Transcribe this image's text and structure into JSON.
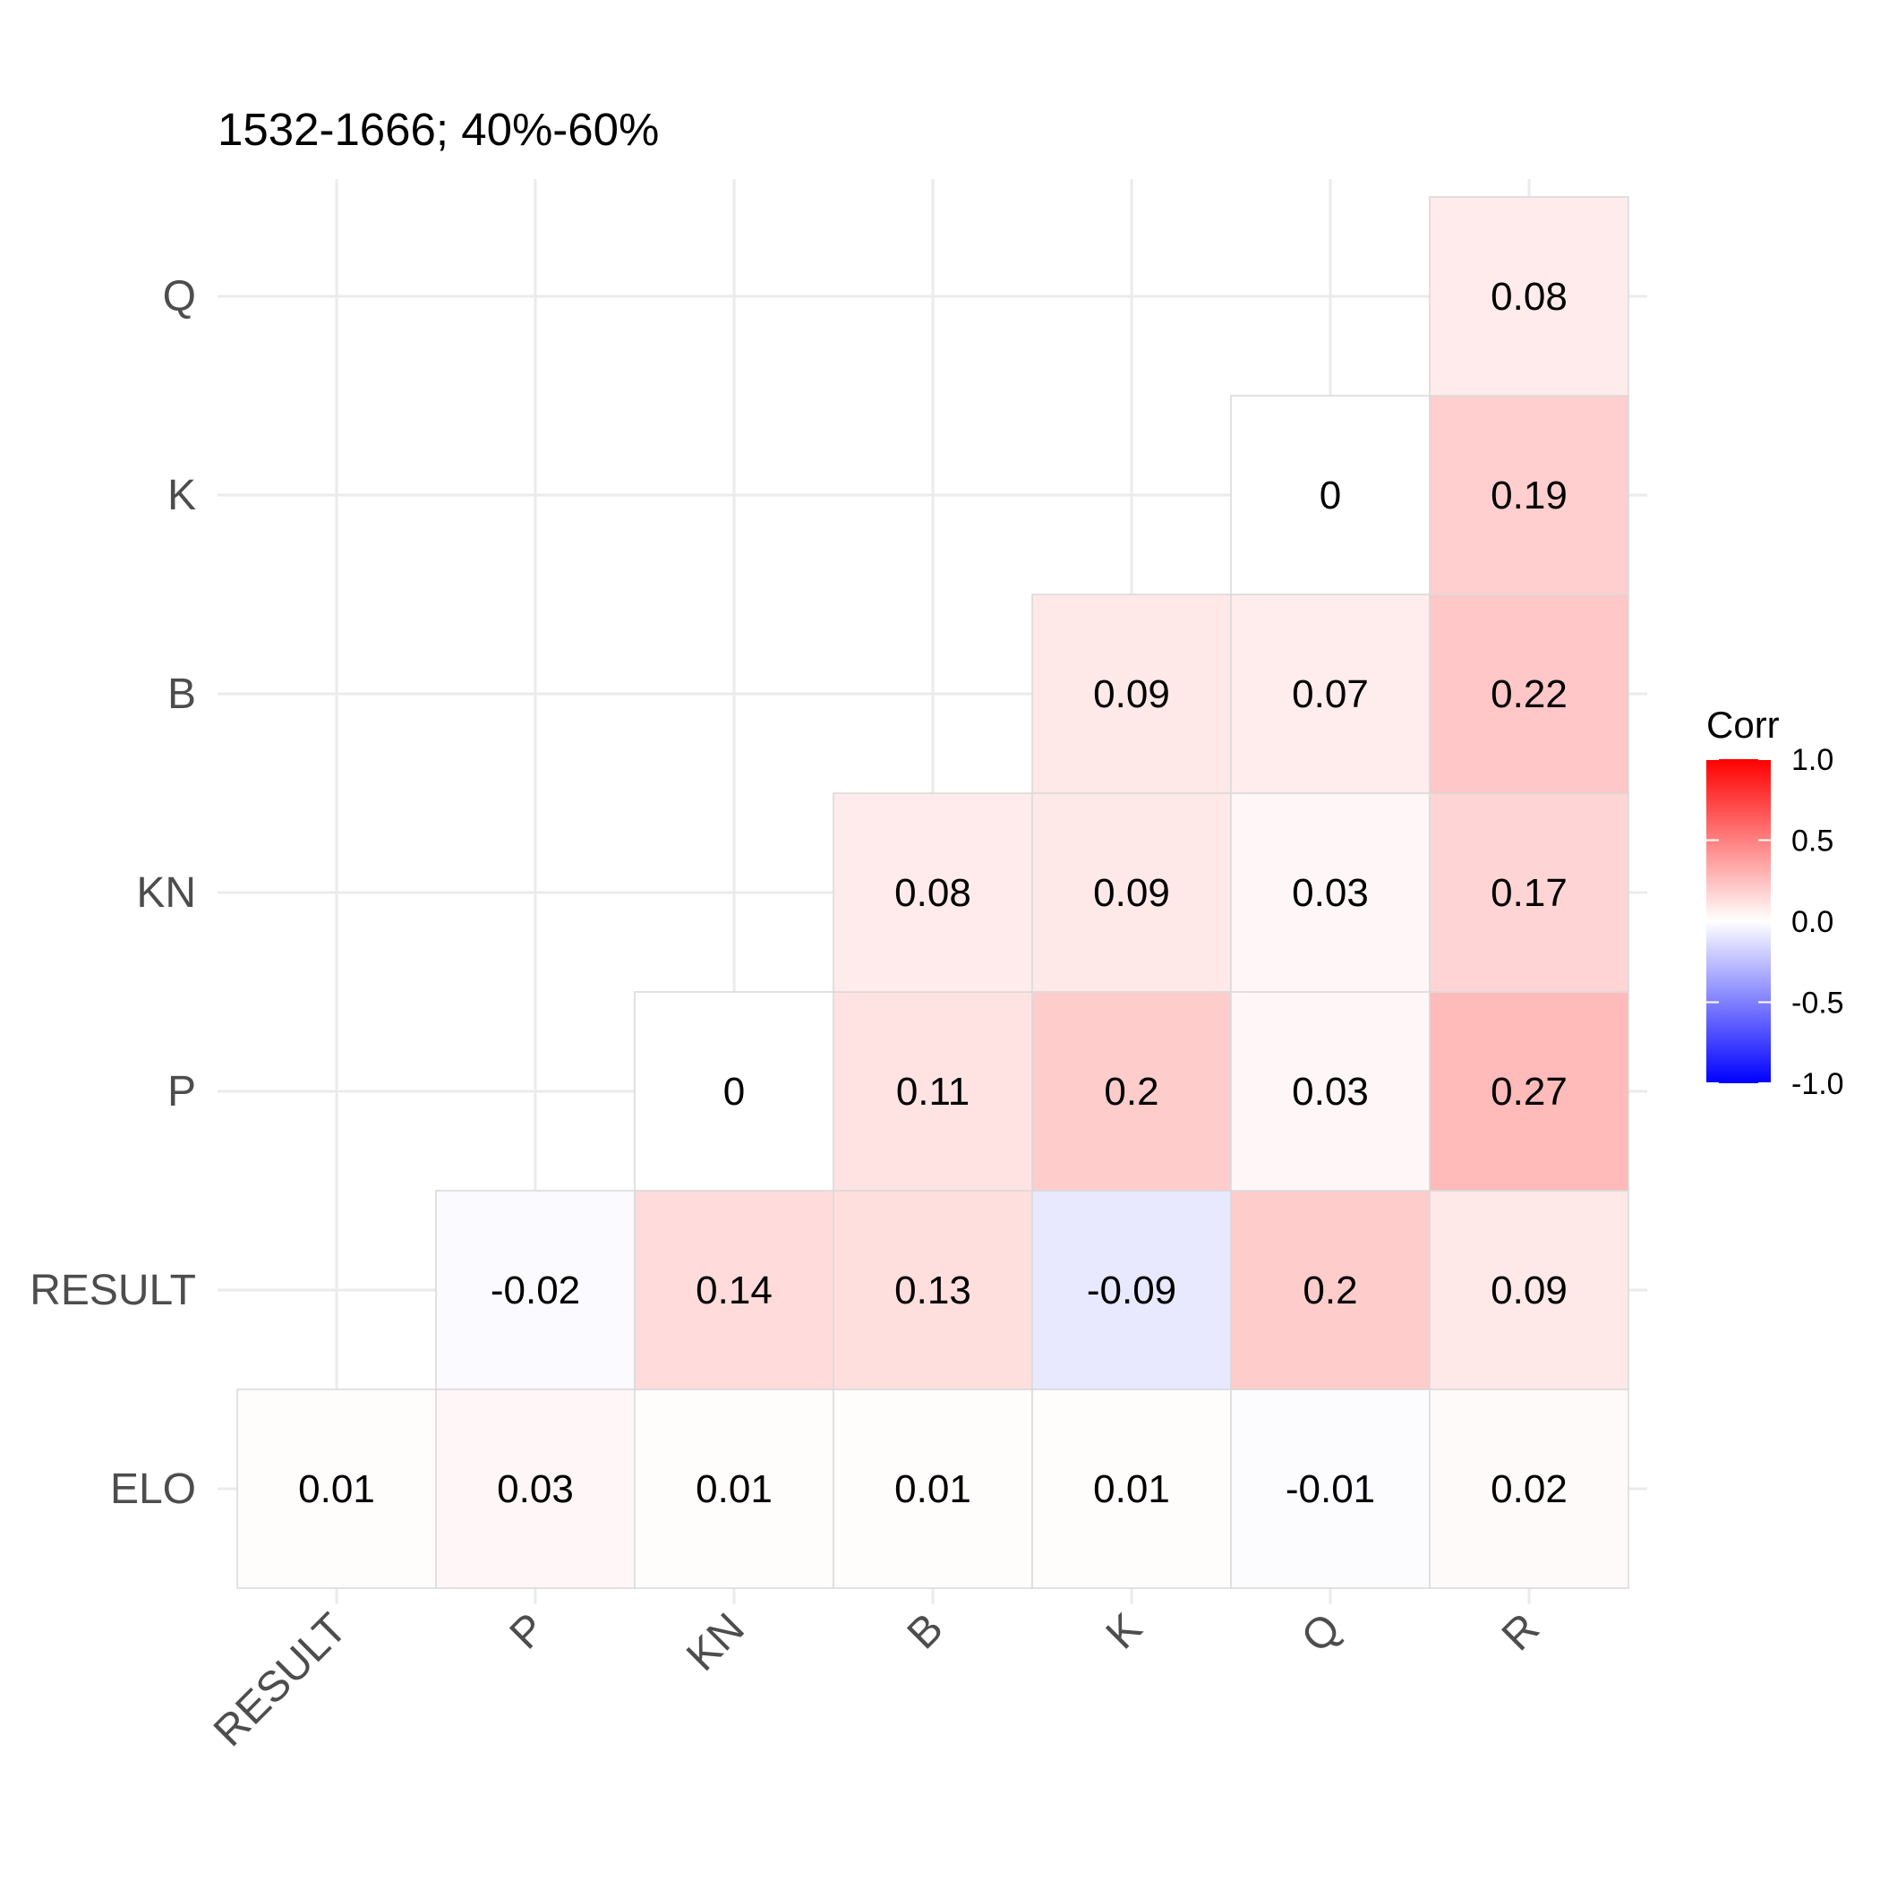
{
  "chart_data": {
    "type": "heatmap",
    "title": "1532-1666; 40%-60%",
    "xlabel": "",
    "ylabel": "",
    "x_categories": [
      "RESULT",
      "P",
      "KN",
      "B",
      "K",
      "Q",
      "R"
    ],
    "y_categories": [
      "ELO",
      "RESULT",
      "P",
      "KN",
      "B",
      "K",
      "Q"
    ],
    "cells": [
      {
        "x": "RESULT",
        "y": "ELO",
        "value": 0.01,
        "label": "0.01"
      },
      {
        "x": "P",
        "y": "ELO",
        "value": 0.03,
        "label": "0.03"
      },
      {
        "x": "KN",
        "y": "ELO",
        "value": 0.01,
        "label": "0.01"
      },
      {
        "x": "B",
        "y": "ELO",
        "value": 0.01,
        "label": "0.01"
      },
      {
        "x": "K",
        "y": "ELO",
        "value": 0.01,
        "label": "0.01"
      },
      {
        "x": "Q",
        "y": "ELO",
        "value": -0.01,
        "label": "-0.01"
      },
      {
        "x": "R",
        "y": "ELO",
        "value": 0.02,
        "label": "0.02"
      },
      {
        "x": "P",
        "y": "RESULT",
        "value": -0.02,
        "label": "-0.02"
      },
      {
        "x": "KN",
        "y": "RESULT",
        "value": 0.14,
        "label": "0.14"
      },
      {
        "x": "B",
        "y": "RESULT",
        "value": 0.13,
        "label": "0.13"
      },
      {
        "x": "K",
        "y": "RESULT",
        "value": -0.09,
        "label": "-0.09"
      },
      {
        "x": "Q",
        "y": "RESULT",
        "value": 0.2,
        "label": "0.2"
      },
      {
        "x": "R",
        "y": "RESULT",
        "value": 0.09,
        "label": "0.09"
      },
      {
        "x": "KN",
        "y": "P",
        "value": 0,
        "label": "0"
      },
      {
        "x": "B",
        "y": "P",
        "value": 0.11,
        "label": "0.11"
      },
      {
        "x": "K",
        "y": "P",
        "value": 0.2,
        "label": "0.2"
      },
      {
        "x": "Q",
        "y": "P",
        "value": 0.03,
        "label": "0.03"
      },
      {
        "x": "R",
        "y": "P",
        "value": 0.27,
        "label": "0.27"
      },
      {
        "x": "B",
        "y": "KN",
        "value": 0.08,
        "label": "0.08"
      },
      {
        "x": "K",
        "y": "KN",
        "value": 0.09,
        "label": "0.09"
      },
      {
        "x": "Q",
        "y": "KN",
        "value": 0.03,
        "label": "0.03"
      },
      {
        "x": "R",
        "y": "KN",
        "value": 0.17,
        "label": "0.17"
      },
      {
        "x": "K",
        "y": "B",
        "value": 0.09,
        "label": "0.09"
      },
      {
        "x": "Q",
        "y": "B",
        "value": 0.07,
        "label": "0.07"
      },
      {
        "x": "R",
        "y": "B",
        "value": 0.22,
        "label": "0.22"
      },
      {
        "x": "Q",
        "y": "K",
        "value": 0,
        "label": "0"
      },
      {
        "x": "R",
        "y": "K",
        "value": 0.19,
        "label": "0.19"
      },
      {
        "x": "R",
        "y": "Q",
        "value": 0.08,
        "label": "0.08"
      }
    ],
    "color_scale": {
      "low": "#0000FF",
      "mid": "#FFFFFF",
      "high": "#FF0000",
      "limits": [
        -1.0,
        1.0
      ]
    },
    "legend": {
      "title": "Corr",
      "position": "right",
      "ticks": [
        1.0,
        0.5,
        0.0,
        -0.5,
        -1.0
      ],
      "tick_labels": [
        "1.0",
        "0.5",
        "0.0",
        "-0.5",
        "-1.0"
      ]
    },
    "grid": true
  }
}
